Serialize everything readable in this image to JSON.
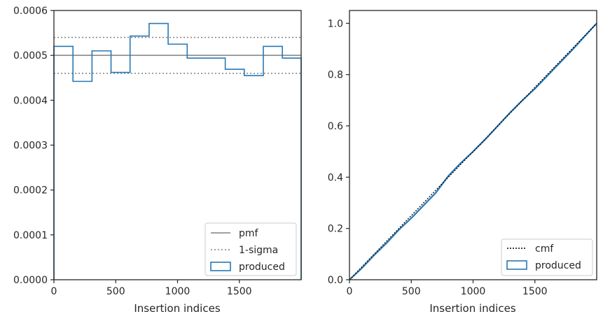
{
  "chart_data": [
    {
      "type": "histogram",
      "xlabel": "Insertion indices",
      "ylabel": "",
      "xlim": [
        0,
        2000
      ],
      "ylim": [
        0,
        0.0006
      ],
      "xticks": [
        "0",
        "500",
        "1000",
        "1500"
      ],
      "yticks": [
        "0.0000",
        "0.0001",
        "0.0002",
        "0.0003",
        "0.0004",
        "0.0005",
        "0.0006"
      ],
      "bin_edges": [
        0,
        154,
        308,
        462,
        616,
        770,
        924,
        1078,
        1232,
        1386,
        1540,
        1694,
        1848,
        2000
      ],
      "values": [
        0.00052,
        0.000442,
        0.00051,
        0.000462,
        0.000543,
        0.000571,
        0.000525,
        0.000494,
        0.000494,
        0.000469,
        0.000455,
        0.00052,
        0.000494
      ],
      "pmf": 0.0005,
      "sigma_band": [
        0.00046,
        0.00054
      ],
      "legend": {
        "position": "lower right",
        "entries": [
          {
            "label": "pmf",
            "style": "solid",
            "color": "#808080"
          },
          {
            "label": "1-sigma",
            "style": "dotted",
            "color": "#808080"
          },
          {
            "label": "produced",
            "style": "patch",
            "color": "#1f77b4"
          }
        ]
      }
    },
    {
      "type": "line",
      "xlabel": "Insertion indices",
      "ylabel": "",
      "xlim": [
        0,
        2000
      ],
      "ylim": [
        0,
        1.05
      ],
      "xticks": [
        "0",
        "500",
        "1000",
        "1500"
      ],
      "yticks": [
        "0.0",
        "0.2",
        "0.4",
        "0.6",
        "0.8",
        "1.0"
      ],
      "cmf": {
        "x": [
          0,
          2000
        ],
        "y": [
          0,
          1.0
        ]
      },
      "produced": {
        "x": [
          0,
          100,
          200,
          300,
          400,
          500,
          600,
          700,
          800,
          900,
          1000,
          1100,
          1200,
          1300,
          1400,
          1500,
          1600,
          1700,
          1800,
          1900,
          2000
        ],
        "y": [
          0,
          0.045,
          0.096,
          0.143,
          0.195,
          0.24,
          0.29,
          0.34,
          0.405,
          0.455,
          0.5,
          0.548,
          0.6,
          0.652,
          0.7,
          0.745,
          0.795,
          0.845,
          0.895,
          0.948,
          1.0
        ]
      },
      "legend": {
        "position": "lower right",
        "entries": [
          {
            "label": "cmf",
            "style": "dotted",
            "color": "#000000"
          },
          {
            "label": "produced",
            "style": "patch",
            "color": "#1f77b4"
          }
        ]
      }
    }
  ]
}
